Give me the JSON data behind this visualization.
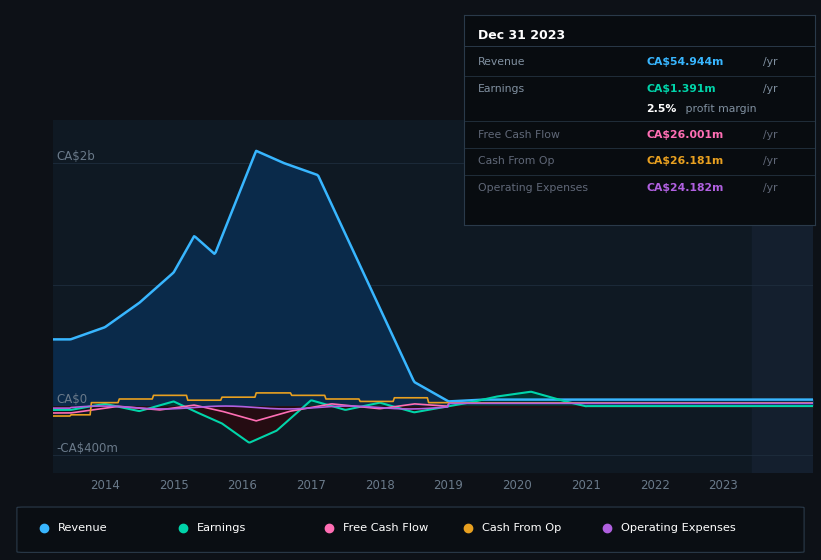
{
  "bg_color": "#0d1117",
  "chart_bg": "#0f1923",
  "forecast_bg": "#141f2e",
  "grid_color": "#1e2d3d",
  "ylabel_top": "CA$2b",
  "ylabel_zero": "CA$0",
  "ylabel_neg": "-CA$400m",
  "revenue_color": "#38b6ff",
  "earnings_color": "#00d4aa",
  "fcf_color": "#ff6eb4",
  "cashfromop_color": "#e8a020",
  "opex_color": "#b060e0",
  "revenue_fill": "#0a2a4a",
  "earnings_fill_pos": "#003830",
  "earnings_fill_neg": "#2a0a10",
  "shaded_start": 2023.42,
  "xlim": [
    2013.25,
    2024.3
  ],
  "ylim_min": -550000000,
  "ylim_max": 2350000000,
  "x_ticks": [
    2014,
    2015,
    2016,
    2017,
    2018,
    2019,
    2020,
    2021,
    2022,
    2023
  ],
  "legend": [
    {
      "label": "Revenue",
      "color": "#38b6ff"
    },
    {
      "label": "Earnings",
      "color": "#00d4aa"
    },
    {
      "label": "Free Cash Flow",
      "color": "#ff6eb4"
    },
    {
      "label": "Cash From Op",
      "color": "#e8a020"
    },
    {
      "label": "Operating Expenses",
      "color": "#b060e0"
    }
  ],
  "infobox": {
    "title": "Dec 31 2023",
    "title_color": "#ffffff",
    "bg": "#080c10",
    "border": "#2a3a4a",
    "rows": [
      {
        "label": "Revenue",
        "value": "CA$54.944m",
        "unit": "/yr",
        "vcolor": "#38b6ff",
        "lcolor": "#8090a0"
      },
      {
        "label": "Earnings",
        "value": "CA$1.391m",
        "unit": "/yr",
        "vcolor": "#00d4aa",
        "lcolor": "#8090a0"
      },
      {
        "label": "",
        "value": "2.5%",
        "unit": " profit margin",
        "vcolor": "#ffffff",
        "lcolor": "#8090a0",
        "bold_val": true
      },
      {
        "label": "Free Cash Flow",
        "value": "CA$26.001m",
        "unit": "/yr",
        "vcolor": "#ff6eb4",
        "lcolor": "#606878"
      },
      {
        "label": "Cash From Op",
        "value": "CA$26.181m",
        "unit": "/yr",
        "vcolor": "#e8a020",
        "lcolor": "#606878"
      },
      {
        "label": "Operating Expenses",
        "value": "CA$24.182m",
        "unit": "/yr",
        "vcolor": "#b060e0",
        "lcolor": "#606878"
      }
    ]
  }
}
